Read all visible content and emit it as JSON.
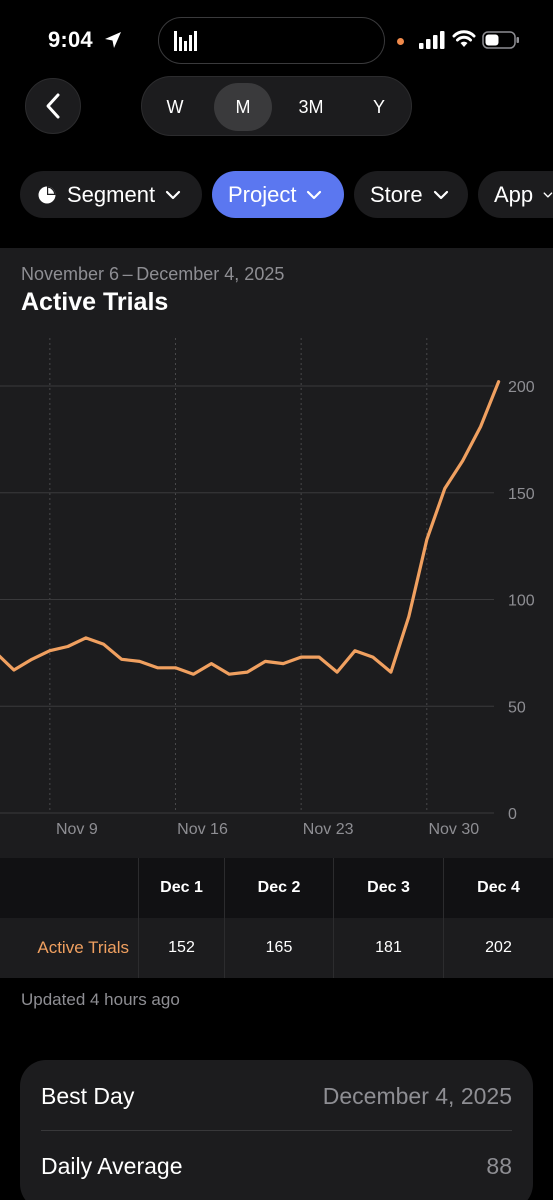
{
  "status_bar": {
    "time": "9:04",
    "icons": [
      "location-arrow-icon",
      "activity-bars-icon",
      "cellular-signal-icon",
      "wifi-icon",
      "battery-icon"
    ]
  },
  "nav": {
    "back_icon": "chevron-left-icon",
    "periods": [
      "W",
      "M",
      "3M",
      "Y"
    ],
    "selected_period": "M"
  },
  "filters": [
    {
      "label": "Segment",
      "icon": "pie-chart-icon",
      "active": false
    },
    {
      "label": "Project",
      "active": true
    },
    {
      "label": "Store",
      "active": false
    },
    {
      "label": "App",
      "active": false
    }
  ],
  "chart": {
    "date_range": "November 6 – December 4, 2025",
    "title": "Active Trials",
    "line_color": "#f0a060"
  },
  "chart_data": {
    "type": "line",
    "title": "Active Trials",
    "xlabel": "",
    "ylabel": "",
    "ylim": [
      0,
      200
    ],
    "y_ticks": [
      "0",
      "50",
      "100",
      "150",
      "200"
    ],
    "x_tick_labels": [
      "Nov 9",
      "Nov 16",
      "Nov 23",
      "Nov 30"
    ],
    "grid": true,
    "series": [
      {
        "name": "Active Trials",
        "x": [
          "Nov 6",
          "Nov 7",
          "Nov 8",
          "Nov 9",
          "Nov 10",
          "Nov 11",
          "Nov 12",
          "Nov 13",
          "Nov 14",
          "Nov 15",
          "Nov 16",
          "Nov 17",
          "Nov 18",
          "Nov 19",
          "Nov 20",
          "Nov 21",
          "Nov 22",
          "Nov 23",
          "Nov 24",
          "Nov 25",
          "Nov 26",
          "Nov 27",
          "Nov 28",
          "Nov 29",
          "Nov 30",
          "Dec 1",
          "Dec 2",
          "Dec 3",
          "Dec 4"
        ],
        "values": [
          75,
          67,
          72,
          76,
          78,
          82,
          79,
          72,
          71,
          68,
          68,
          65,
          70,
          65,
          66,
          71,
          70,
          73,
          73,
          66,
          76,
          73,
          66,
          92,
          128,
          152,
          165,
          181,
          202
        ]
      }
    ]
  },
  "table": {
    "row_label": "Active Trials",
    "columns": [
      {
        "header": "Dec 1",
        "value": "152"
      },
      {
        "header": "Dec 2",
        "value": "165"
      },
      {
        "header": "Dec 3",
        "value": "181"
      },
      {
        "header": "Dec 4",
        "value": "202"
      }
    ]
  },
  "updated_text": "Updated 4 hours ago",
  "summary": {
    "rows": [
      {
        "label": "Best Day",
        "value": "December 4, 2025"
      },
      {
        "label": "Daily Average",
        "value": "88"
      }
    ]
  }
}
